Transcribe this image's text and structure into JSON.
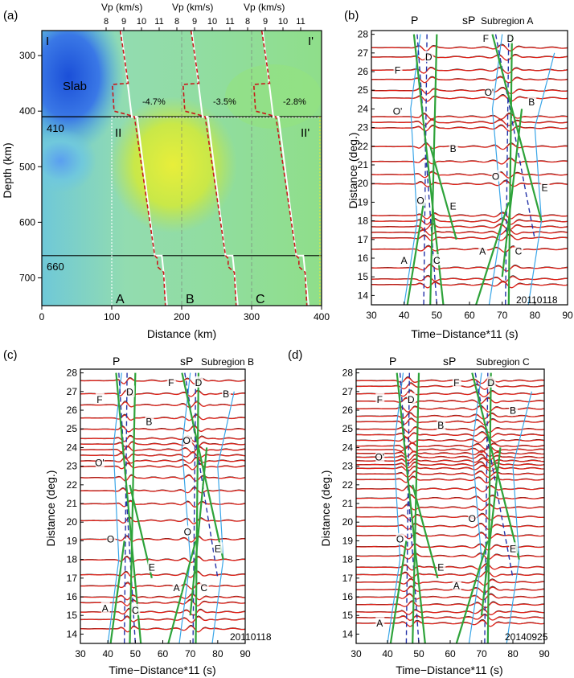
{
  "chart_data": [
    {
      "panel": "(a)",
      "type": "heatmap",
      "xlabel": "Distance (km)",
      "ylabel": "Depth (km)",
      "xlim": [
        0,
        400
      ],
      "ylim": [
        750,
        255
      ],
      "x_ticks": [
        0,
        100,
        200,
        300,
        400
      ],
      "y_ticks": [
        300,
        400,
        500,
        600,
        700
      ],
      "top_axis_label": "Vp (km/s)",
      "top_ticks": [
        "8",
        "9",
        "10",
        "11"
      ],
      "boundary_410": "410",
      "boundary_660": "660",
      "labels": {
        "I": "I",
        "I_prime": "I'",
        "II": "II",
        "II_prime": "II'",
        "slab": "Slab",
        "A": "A",
        "B": "B",
        "C": "C"
      },
      "anomalies": [
        "-4.7%",
        "-3.5%",
        "-2.8%"
      ],
      "profile_offsets_km": [
        0,
        100,
        200
      ],
      "profile_vp": {
        "depths": [
          255,
          350,
          352,
          400,
          405,
          410,
          660,
          665,
          680,
          690,
          750
        ],
        "vp": [
          8.8,
          9.25,
          8.35,
          8.45,
          9.05,
          9.6,
          10.75,
          10.9,
          10.9,
          11.25,
          11.35
        ]
      }
    },
    {
      "panel": "(b)",
      "type": "line",
      "title": "Subregion A",
      "event": "20110118",
      "xlabel": "Time−Distance*11 (s)",
      "ylabel": "Distance (deg.)",
      "xlim": [
        30,
        90
      ],
      "ylim": [
        13.5,
        28.2
      ],
      "x_ticks": [
        30,
        40,
        50,
        60,
        70,
        80,
        90
      ],
      "y_ticks": [
        14,
        15,
        16,
        17,
        18,
        19,
        20,
        21,
        22,
        23,
        24,
        25,
        26,
        27,
        28
      ],
      "phase_labels": [
        "P",
        "sP"
      ],
      "traces": [
        14.6,
        14.9,
        15.5,
        16.5,
        17.1,
        17.4,
        17.7,
        18.0,
        18.3,
        20.0,
        20.5,
        21.2,
        22.0,
        23.0,
        23.3,
        23.6,
        24.6,
        25.0,
        25.6,
        26.1,
        26.8,
        27.3
      ],
      "branch_labels": [
        {
          "t": "F",
          "x": 38,
          "y": 25.9
        },
        {
          "t": "D",
          "x": 47.5,
          "y": 26.6
        },
        {
          "t": "O'",
          "x": 38,
          "y": 23.7
        },
        {
          "t": "B",
          "x": 55,
          "y": 21.7
        },
        {
          "t": "O",
          "x": 45,
          "y": 18.9
        },
        {
          "t": "E",
          "x": 55,
          "y": 18.6
        },
        {
          "t": "A",
          "x": 40,
          "y": 15.7
        },
        {
          "t": "C",
          "x": 50,
          "y": 15.7
        },
        {
          "t": "F",
          "x": 65,
          "y": 27.6
        },
        {
          "t": "D",
          "x": 72.5,
          "y": 27.6
        },
        {
          "t": "O'",
          "x": 66,
          "y": 24.7
        },
        {
          "t": "B",
          "x": 79,
          "y": 24.2
        },
        {
          "t": "O",
          "x": 68,
          "y": 20.2
        },
        {
          "t": "E",
          "x": 83,
          "y": 19.6
        },
        {
          "t": "A",
          "x": 64,
          "y": 16.2
        },
        {
          "t": "C",
          "x": 75,
          "y": 16.2
        }
      ]
    },
    {
      "panel": "(c)",
      "type": "line",
      "title": "Subregion B",
      "event": "20110118",
      "xlabel": "Time−Distance*11 (s)",
      "ylabel": "Distance (deg.)",
      "xlim": [
        30,
        90
      ],
      "ylim": [
        13.5,
        28.2
      ],
      "x_ticks": [
        30,
        40,
        50,
        60,
        70,
        80,
        90
      ],
      "y_ticks": [
        14,
        15,
        16,
        17,
        18,
        19,
        20,
        21,
        22,
        23,
        24,
        25,
        26,
        27,
        28
      ],
      "phase_labels": [
        "P",
        "sP"
      ],
      "traces": [
        14.3,
        14.8,
        15.2,
        15.7,
        16.0,
        16.6,
        17.2,
        18.0,
        19.1,
        20.1,
        21.0,
        21.7,
        22.4,
        23.0,
        23.3,
        23.6,
        23.9,
        24.2,
        24.5,
        25.0,
        25.6,
        26.3,
        26.9,
        27.6
      ],
      "branch_labels": [
        {
          "t": "F",
          "x": 37,
          "y": 26.4
        },
        {
          "t": "D",
          "x": 48,
          "y": 26.8
        },
        {
          "t": "B",
          "x": 55,
          "y": 25.2
        },
        {
          "t": "O'",
          "x": 37,
          "y": 23.0
        },
        {
          "t": "O",
          "x": 41,
          "y": 18.9
        },
        {
          "t": "E",
          "x": 56,
          "y": 17.4
        },
        {
          "t": "A",
          "x": 39,
          "y": 15.2
        },
        {
          "t": "C",
          "x": 50,
          "y": 15.1
        },
        {
          "t": "F",
          "x": 63,
          "y": 27.3
        },
        {
          "t": "D",
          "x": 73,
          "y": 27.3
        },
        {
          "t": "B",
          "x": 83,
          "y": 26.7
        },
        {
          "t": "O'",
          "x": 69,
          "y": 24.2
        },
        {
          "t": "O",
          "x": 69,
          "y": 19.3
        },
        {
          "t": "E",
          "x": 80,
          "y": 18.4
        },
        {
          "t": "A",
          "x": 65,
          "y": 16.3
        },
        {
          "t": "C",
          "x": 75,
          "y": 16.3
        }
      ]
    },
    {
      "panel": "(d)",
      "type": "line",
      "title": "Subregion C",
      "event": "20140925",
      "xlabel": "Time−Distance*11 (s)",
      "ylabel": "Distance (deg.)",
      "xlim": [
        30,
        90
      ],
      "ylim": [
        13.5,
        28.2
      ],
      "x_ticks": [
        30,
        40,
        50,
        60,
        70,
        80,
        90
      ],
      "y_ticks": [
        14,
        15,
        16,
        17,
        18,
        19,
        20,
        21,
        22,
        23,
        24,
        25,
        26,
        27,
        28
      ],
      "phase_labels": [
        "P",
        "sP"
      ],
      "traces": [
        14.6,
        14.9,
        15.2,
        15.6,
        16.0,
        16.4,
        16.8,
        17.2,
        17.6,
        18.2,
        18.7,
        19.3,
        19.8,
        20.3,
        20.8,
        21.3,
        21.8,
        22.3,
        22.6,
        22.9,
        23.1,
        23.3,
        23.5,
        23.7,
        23.9,
        24.1,
        24.4,
        24.7,
        25.0,
        25.4,
        25.7,
        26.1,
        26.5,
        26.9,
        27.3,
        27.6
      ],
      "branch_labels": [
        {
          "t": "F",
          "x": 37.5,
          "y": 26.4
        },
        {
          "t": "D",
          "x": 47.5,
          "y": 26.4
        },
        {
          "t": "B",
          "x": 57,
          "y": 25.0
        },
        {
          "t": "O'",
          "x": 37.5,
          "y": 23.3
        },
        {
          "t": "O",
          "x": 44,
          "y": 18.9
        },
        {
          "t": "E",
          "x": 57,
          "y": 17.4
        },
        {
          "t": "A",
          "x": 37.5,
          "y": 14.4
        },
        {
          "t": "F",
          "x": 62,
          "y": 27.3
        },
        {
          "t": "D",
          "x": 73,
          "y": 27.3
        },
        {
          "t": "B",
          "x": 80,
          "y": 25.8
        },
        {
          "t": "O",
          "x": 67,
          "y": 20.0
        },
        {
          "t": "E",
          "x": 80,
          "y": 18.4
        },
        {
          "t": "A",
          "x": 62,
          "y": 16.4
        }
      ]
    }
  ]
}
